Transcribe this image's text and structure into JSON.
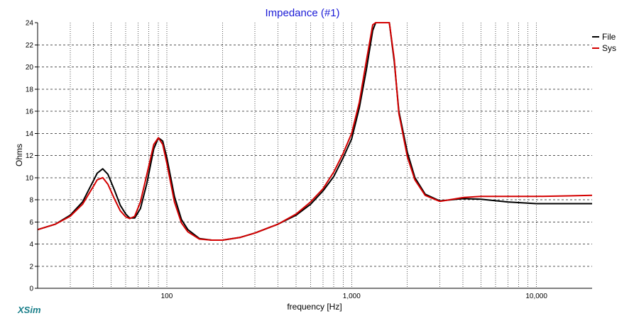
{
  "chart_data": {
    "type": "line",
    "title": "Impedance (#1)",
    "xlabel": "frequency [Hz]",
    "ylabel": "Ohms",
    "x_scale": "log",
    "xlim": [
      20,
      20000
    ],
    "ylim": [
      0,
      24
    ],
    "grid": true,
    "legend_position": "top-right",
    "x_tick_labels": [
      {
        "value": 100,
        "label": "100"
      },
      {
        "value": 1000,
        "label": "1,000"
      },
      {
        "value": 10000,
        "label": "10,000"
      }
    ],
    "y_ticks": [
      0,
      2,
      4,
      6,
      8,
      10,
      12,
      14,
      16,
      18,
      20,
      22,
      24
    ],
    "series": [
      {
        "name": "File",
        "color": "#000000",
        "x": [
          20,
          25,
          30,
          35,
          40,
          42,
          45,
          48,
          52,
          56,
          60,
          63,
          67,
          72,
          78,
          85,
          90,
          95,
          100,
          105,
          110,
          120,
          130,
          150,
          175,
          200,
          250,
          300,
          400,
          500,
          600,
          700,
          800,
          900,
          1000,
          1100,
          1200,
          1300,
          1350,
          1450,
          1550,
          1600,
          1700,
          1800,
          2000,
          2200,
          2500,
          3000,
          4000,
          5000,
          7000,
          10000,
          15000,
          20000
        ],
        "y": [
          5.3,
          5.8,
          6.6,
          7.8,
          9.7,
          10.4,
          10.8,
          10.3,
          8.9,
          7.5,
          6.7,
          6.35,
          6.35,
          7.2,
          9.5,
          12.6,
          13.6,
          13.3,
          11.8,
          10.0,
          8.3,
          6.2,
          5.3,
          4.5,
          4.35,
          4.35,
          4.6,
          5.0,
          5.8,
          6.6,
          7.6,
          8.8,
          10.1,
          11.8,
          13.5,
          16.3,
          19.7,
          23.3,
          24,
          24,
          24,
          24,
          20.5,
          16.0,
          12.3,
          10.0,
          8.5,
          7.9,
          8.1,
          8.05,
          7.8,
          7.65,
          7.65,
          7.65
        ]
      },
      {
        "name": "Sys",
        "color": "#d40000",
        "x": [
          20,
          25,
          30,
          35,
          40,
          42,
          45,
          48,
          52,
          56,
          60,
          63,
          67,
          72,
          78,
          85,
          90,
          95,
          100,
          105,
          110,
          120,
          130,
          150,
          175,
          200,
          250,
          300,
          400,
          500,
          600,
          700,
          800,
          900,
          1000,
          1100,
          1200,
          1300,
          1350,
          1450,
          1550,
          1600,
          1700,
          1800,
          2000,
          2200,
          2500,
          3000,
          4000,
          5000,
          7000,
          10000,
          15000,
          20000
        ],
        "y": [
          5.3,
          5.8,
          6.5,
          7.6,
          9.2,
          9.8,
          10.0,
          9.4,
          8.1,
          7.0,
          6.45,
          6.3,
          6.5,
          7.8,
          10.3,
          13.0,
          13.6,
          13.0,
          11.3,
          9.5,
          7.8,
          5.9,
          5.1,
          4.45,
          4.35,
          4.35,
          4.6,
          5.0,
          5.8,
          6.7,
          7.8,
          9.0,
          10.5,
          12.2,
          14.0,
          16.8,
          20.5,
          23.8,
          24,
          24,
          24,
          24,
          20.7,
          15.8,
          11.9,
          9.8,
          8.4,
          7.85,
          8.2,
          8.3,
          8.3,
          8.3,
          8.35,
          8.4
        ]
      }
    ]
  },
  "branding": {
    "logo_text": "XSim"
  }
}
